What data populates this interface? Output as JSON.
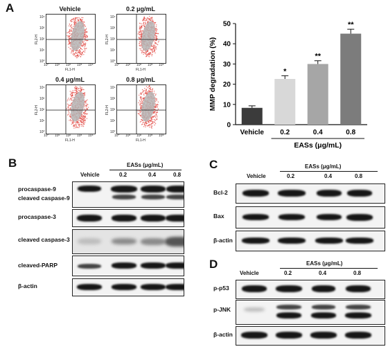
{
  "panels": {
    "a": "A",
    "b": "B",
    "c": "C",
    "d": "D"
  },
  "flow": {
    "plots": [
      {
        "title": "Vehicle"
      },
      {
        "title": "0.2 μg/mL"
      },
      {
        "title": "0.4 μg/mL"
      },
      {
        "title": "0.8 μg/mL"
      }
    ],
    "y_axis_label": "FL2-H",
    "x_axis_label": "FL1-H",
    "ticks": [
      "10⁰",
      "10¹",
      "10²",
      "10³",
      "10⁴"
    ],
    "colors": {
      "dots": "#e0403a",
      "core": "#b5b5b5"
    }
  },
  "chart_data": {
    "type": "bar",
    "categories": [
      "Vehicle",
      "0.2",
      "0.4",
      "0.8"
    ],
    "values": [
      8.3,
      22.6,
      30.0,
      45.0
    ],
    "errors": [
      1.0,
      1.6,
      1.6,
      2.2
    ],
    "significance": [
      "",
      "*",
      "**",
      "**"
    ],
    "bar_colors": [
      "#3b3b3b",
      "#d8d8d8",
      "#a6a6a6",
      "#7c7c7c"
    ],
    "ylabel": "MMP degradation (%)",
    "xlabel": "EASs (μg/mL)",
    "ylim": [
      0,
      50
    ],
    "yticks": [
      0,
      10,
      20,
      30,
      40,
      50
    ],
    "grid": false
  },
  "blots": {
    "b": {
      "vehicle": "Vehicle",
      "treatment": "EASs (μg/mL)",
      "doses": [
        "0.2",
        "0.4",
        "0.8"
      ],
      "rows": [
        {
          "labels": [
            "procaspase-9",
            "cleaved caspase-9"
          ]
        },
        {
          "labels": [
            "procaspase-3"
          ]
        },
        {
          "labels": [
            "cleaved caspase-3"
          ]
        },
        {
          "labels": [
            "cleaved-PARP"
          ]
        },
        {
          "labels": [
            "β-actin"
          ]
        }
      ]
    },
    "c": {
      "vehicle": "Vehicle",
      "treatment": "EASs (μg/mL)",
      "doses": [
        "0.2",
        "0.4",
        "0.8"
      ],
      "rows": [
        {
          "labels": [
            "Bcl-2"
          ]
        },
        {
          "labels": [
            "Bax"
          ]
        },
        {
          "labels": [
            "β-actin"
          ]
        }
      ]
    },
    "d": {
      "vehicle": "Vehicle",
      "treatment": "EASs (μg/mL)",
      "doses": [
        "0.2",
        "0.4",
        "0.8"
      ],
      "rows": [
        {
          "labels": [
            "p-p53"
          ]
        },
        {
          "labels": [
            "p-JNK"
          ]
        },
        {
          "labels": [
            "β-actin"
          ]
        }
      ]
    }
  }
}
